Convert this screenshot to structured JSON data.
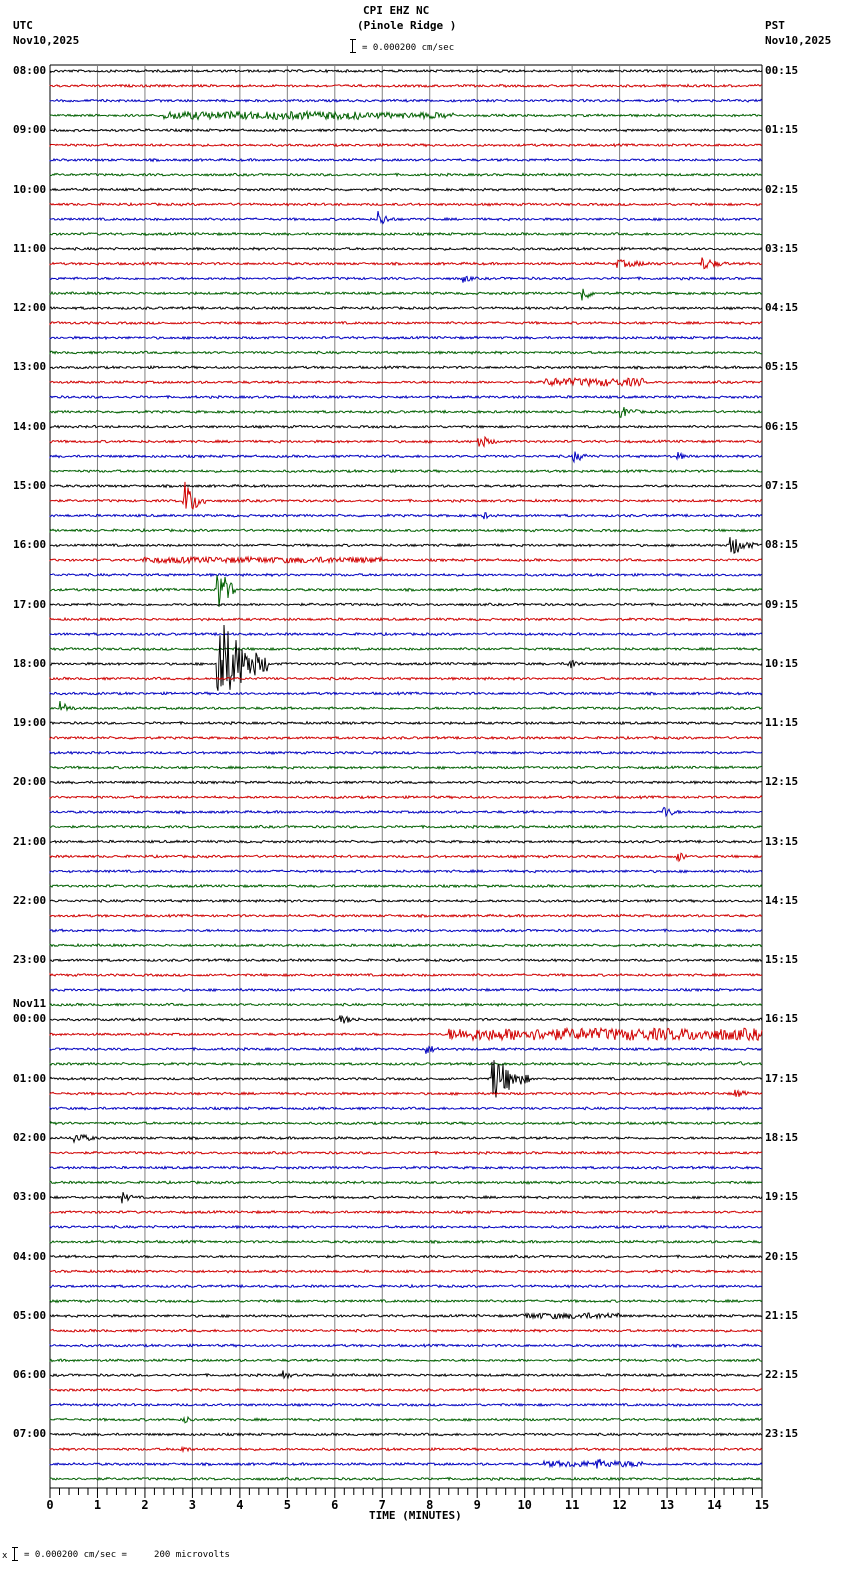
{
  "header": {
    "title": "CPI EHZ NC",
    "subtitle": "(Pinole Ridge )",
    "scale_text": "= 0.000200 cm/sec",
    "left_tz": "UTC",
    "left_date": "Nov10,2025",
    "right_tz": "PST",
    "right_date": "Nov10,2025"
  },
  "footer": {
    "scale_text": "= 0.000200 cm/sec =     200 microvolts",
    "xlabel": "TIME (MINUTES)"
  },
  "colors": {
    "trace_cycle": [
      "#000000",
      "#d00000",
      "#0000c0",
      "#006000"
    ],
    "grid": "#808080"
  },
  "chart_data": {
    "type": "line",
    "title": "CPI EHZ NC (Pinole Ridge )",
    "xlabel": "TIME (MINUTES)",
    "ylabel": "",
    "xlim": [
      0,
      15
    ],
    "x_ticks": [
      "0",
      "1",
      "2",
      "3",
      "4",
      "5",
      "6",
      "7",
      "8",
      "9",
      "10",
      "11",
      "12",
      "13",
      "14",
      "15"
    ],
    "grid": true,
    "traces_per_hour": 4,
    "minutes_per_trace": 15,
    "left_labels_utc": [
      "08:00",
      "09:00",
      "10:00",
      "11:00",
      "12:00",
      "13:00",
      "14:00",
      "15:00",
      "16:00",
      "17:00",
      "18:00",
      "19:00",
      "20:00",
      "21:00",
      "22:00",
      "23:00",
      "00:00",
      "01:00",
      "02:00",
      "03:00",
      "04:00",
      "05:00",
      "06:00",
      "07:00"
    ],
    "left_date_change": {
      "hour_index": 16,
      "label": "Nov11"
    },
    "right_labels_pst": [
      "00:15",
      "01:15",
      "02:15",
      "03:15",
      "04:15",
      "05:15",
      "06:15",
      "07:15",
      "08:15",
      "09:15",
      "10:15",
      "11:15",
      "12:15",
      "13:15",
      "14:15",
      "15:15",
      "16:15",
      "17:15",
      "18:15",
      "19:15",
      "20:15",
      "21:15",
      "22:15",
      "23:15"
    ],
    "series": [
      {
        "name": "events",
        "values": [
          {
            "trace": 3,
            "minute": 2.5,
            "amp": 4,
            "width": 4
          },
          {
            "trace": 3,
            "minute": 5.5,
            "amp": 3,
            "width": 3
          },
          {
            "trace": 10,
            "minute": 7.0,
            "amp": 6,
            "width": 0.3
          },
          {
            "trace": 13,
            "minute": 12.0,
            "amp": 4,
            "width": 1.5
          },
          {
            "trace": 13,
            "minute": 13.8,
            "amp": 6,
            "width": 0.6
          },
          {
            "trace": 14,
            "minute": 8.8,
            "amp": 3,
            "width": 0.3
          },
          {
            "trace": 15,
            "minute": 11.3,
            "amp": 6,
            "width": 0.2
          },
          {
            "trace": 21,
            "minute": 10.5,
            "amp": 4,
            "width": 2
          },
          {
            "trace": 23,
            "minute": 12.1,
            "amp": 5,
            "width": 0.5
          },
          {
            "trace": 25,
            "minute": 9.1,
            "amp": 6,
            "width": 0.4
          },
          {
            "trace": 26,
            "minute": 11.1,
            "amp": 5,
            "width": 0.4
          },
          {
            "trace": 26,
            "minute": 13.3,
            "amp": 3,
            "width": 0.2
          },
          {
            "trace": 29,
            "minute": 2.9,
            "amp": 16,
            "width": 0.4
          },
          {
            "trace": 30,
            "minute": 9.2,
            "amp": 3,
            "width": 0.3
          },
          {
            "trace": 32,
            "minute": 14.4,
            "amp": 10,
            "width": 0.5
          },
          {
            "trace": 33,
            "minute": 2.0,
            "amp": 3,
            "width": 5
          },
          {
            "trace": 35,
            "minute": 3.6,
            "amp": 20,
            "width": 0.3
          },
          {
            "trace": 40,
            "minute": 3.6,
            "amp": 45,
            "width": 1.0
          },
          {
            "trace": 40,
            "minute": 11.0,
            "amp": 5,
            "width": 0.3
          },
          {
            "trace": 43,
            "minute": 0.3,
            "amp": 5,
            "width": 0.3
          },
          {
            "trace": 50,
            "minute": 13.0,
            "amp": 5,
            "width": 0.3
          },
          {
            "trace": 53,
            "minute": 13.3,
            "amp": 4,
            "width": 0.3
          },
          {
            "trace": 64,
            "minute": 6.2,
            "amp": 4,
            "width": 0.6
          },
          {
            "trace": 65,
            "minute": 8.5,
            "amp": 6,
            "width": 6.5
          },
          {
            "trace": 66,
            "minute": 8.0,
            "amp": 4,
            "width": 0.4
          },
          {
            "trace": 67,
            "minute": 14.5,
            "amp": 3,
            "width": 0.3
          },
          {
            "trace": 68,
            "minute": 9.4,
            "amp": 22,
            "width": 0.7
          },
          {
            "trace": 69,
            "minute": 14.5,
            "amp": 4,
            "width": 0.4
          },
          {
            "trace": 72,
            "minute": 0.6,
            "amp": 5,
            "width": 0.5
          },
          {
            "trace": 76,
            "minute": 1.6,
            "amp": 4,
            "width": 0.3
          },
          {
            "trace": 84,
            "minute": 10.0,
            "amp": 3,
            "width": 2
          },
          {
            "trace": 88,
            "minute": 5.0,
            "amp": 3,
            "width": 0.3
          },
          {
            "trace": 91,
            "minute": 2.9,
            "amp": 3,
            "width": 0.3
          },
          {
            "trace": 93,
            "minute": 2.8,
            "amp": 3,
            "width": 0.4
          },
          {
            "trace": 94,
            "minute": 10.5,
            "amp": 3,
            "width": 2
          },
          {
            "trace": 94,
            "minute": 11.6,
            "amp": 5,
            "width": 0.6
          }
        ]
      }
    ]
  }
}
